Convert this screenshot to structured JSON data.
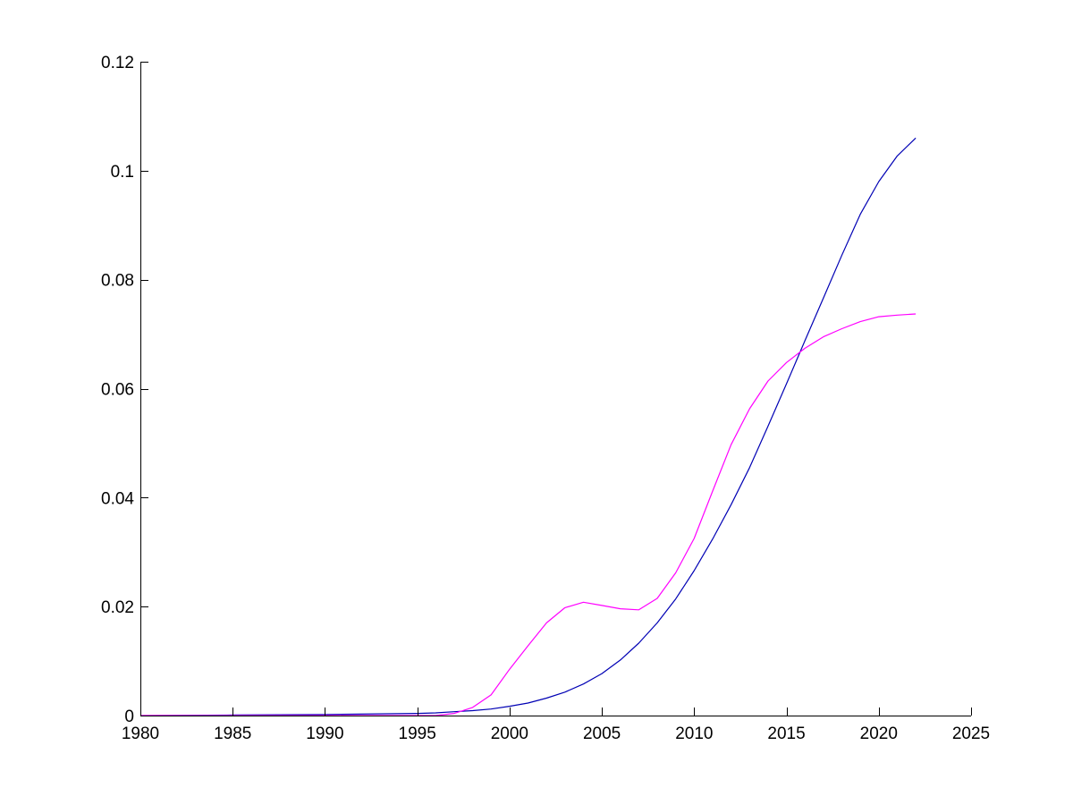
{
  "chart_data": {
    "type": "line",
    "title": "",
    "xlabel": "",
    "ylabel": "",
    "xlim": [
      1980,
      2025
    ],
    "ylim": [
      0,
      0.12
    ],
    "grid": false,
    "x_ticks": [
      "1980",
      "1985",
      "1990",
      "1995",
      "2000",
      "2005",
      "2010",
      "2015",
      "2020",
      "2025"
    ],
    "y_ticks": [
      "0",
      "0.02",
      "0.04",
      "0.06",
      "0.08",
      "0.1",
      "0.12"
    ],
    "x_tick_values": [
      1980,
      1985,
      1990,
      1995,
      2000,
      2005,
      2010,
      2015,
      2020,
      2025
    ],
    "y_tick_values": [
      0,
      0.02,
      0.04,
      0.06,
      0.08,
      0.1,
      0.12
    ],
    "series": [
      {
        "color": "#0000b4",
        "x": [
          1980,
          1985,
          1990,
          1995,
          1996,
          1997,
          1998,
          1999,
          2000,
          2001,
          2002,
          2003,
          2004,
          2005,
          2006,
          2007,
          2008,
          2009,
          2010,
          2011,
          2012,
          2013,
          2014,
          2015,
          2016,
          2017,
          2018,
          2019,
          2020,
          2021,
          2022
        ],
        "values": [
          0.0,
          0.0001,
          0.0002,
          0.0004,
          0.0005,
          0.0007,
          0.0009,
          0.0012,
          0.0017,
          0.0023,
          0.0032,
          0.0043,
          0.0058,
          0.0077,
          0.0102,
          0.0133,
          0.017,
          0.0214,
          0.0266,
          0.0324,
          0.0387,
          0.0455,
          0.0531,
          0.0609,
          0.0688,
          0.0766,
          0.0845,
          0.092,
          0.098,
          0.1027,
          0.106
        ]
      },
      {
        "color": "#ff00ff",
        "x": [
          1980,
          1985,
          1990,
          1995,
          1996,
          1997,
          1998,
          1999,
          2000,
          2001,
          2002,
          2003,
          2004,
          2005,
          2006,
          2007,
          2008,
          2009,
          2010,
          2011,
          2012,
          2013,
          2014,
          2015,
          2016,
          2017,
          2018,
          2019,
          2020,
          2021,
          2022
        ],
        "values": [
          0.0,
          0.0,
          0.0,
          0.0,
          0.0,
          0.0004,
          0.0015,
          0.0038,
          0.0085,
          0.0128,
          0.017,
          0.0198,
          0.0208,
          0.0202,
          0.0196,
          0.0194,
          0.0215,
          0.0262,
          0.0325,
          0.0412,
          0.0497,
          0.0563,
          0.0614,
          0.0648,
          0.0674,
          0.0695,
          0.071,
          0.0723,
          0.0732,
          0.0735,
          0.0737
        ]
      }
    ]
  }
}
